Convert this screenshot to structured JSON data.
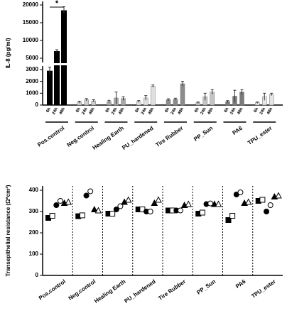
{
  "chart_data": [
    {
      "type": "bar",
      "y_label": "IL-8 (pg/ml)",
      "categories": [
        "Pos.control",
        "Neg.control",
        "Healing Earth",
        "PU_hardened",
        "Tire Rubber",
        "PP_Sun",
        "PA6",
        "TPU_ester"
      ],
      "time_labels": [
        "6h",
        "24h",
        "48h"
      ],
      "colors": [
        "#000000",
        "#cfcfcf",
        "#a9a9a9",
        "#e0e0e0",
        "#8c8c8c",
        "#c4c4c4",
        "#7a7a7a",
        "#e6e6e6"
      ],
      "values": [
        [
          2900,
          7000,
          18500
        ],
        [
          250,
          450,
          350
        ],
        [
          300,
          600,
          550
        ],
        [
          300,
          600,
          1600
        ],
        [
          450,
          500,
          1800
        ],
        [
          200,
          700,
          1100
        ],
        [
          300,
          750,
          1100
        ],
        [
          200,
          700,
          900
        ]
      ],
      "errors": [
        [
          300,
          400,
          1000
        ],
        [
          80,
          100,
          100
        ],
        [
          100,
          500,
          150
        ],
        [
          80,
          200,
          100
        ],
        [
          80,
          80,
          200
        ],
        [
          60,
          300,
          200
        ],
        [
          80,
          500,
          200
        ],
        [
          60,
          300,
          100
        ]
      ],
      "ylim_lower": [
        0,
        3300
      ],
      "yticks_lower": [
        0,
        1000,
        2000,
        3000
      ],
      "ylim_upper": [
        3800,
        21000
      ],
      "yticks_upper": [
        5000,
        10000,
        15000,
        20000
      ],
      "significance": "*"
    },
    {
      "type": "scatter",
      "y_label": "Transepithelial resistance (Ω*cm²)",
      "categories": [
        "Pos.control",
        "Neg.control",
        "Healing Earth",
        "PU_hardened",
        "Tire Rubber",
        "PP_Sun",
        "PA6",
        "TPU_ester"
      ],
      "series": [
        {
          "marker": "square",
          "filled": true,
          "values": [
            270,
            278,
            290,
            310,
            305,
            290,
            260,
            350
          ]
        },
        {
          "marker": "square",
          "filled": false,
          "values": [
            280,
            282,
            290,
            310,
            305,
            295,
            280,
            355
          ]
        },
        {
          "marker": "circle",
          "filled": true,
          "values": [
            330,
            375,
            310,
            300,
            305,
            335,
            380,
            300
          ]
        },
        {
          "marker": "circle",
          "filled": false,
          "values": [
            350,
            395,
            325,
            300,
            305,
            338,
            390,
            330
          ]
        },
        {
          "marker": "triangle",
          "filled": true,
          "values": [
            340,
            310,
            345,
            340,
            330,
            335,
            340,
            370
          ]
        },
        {
          "marker": "triangle",
          "filled": false,
          "values": [
            345,
            305,
            355,
            355,
            335,
            335,
            345,
            375
          ]
        }
      ],
      "ylim": [
        0,
        420
      ],
      "yticks": [
        0,
        100,
        200,
        300,
        400
      ]
    }
  ]
}
